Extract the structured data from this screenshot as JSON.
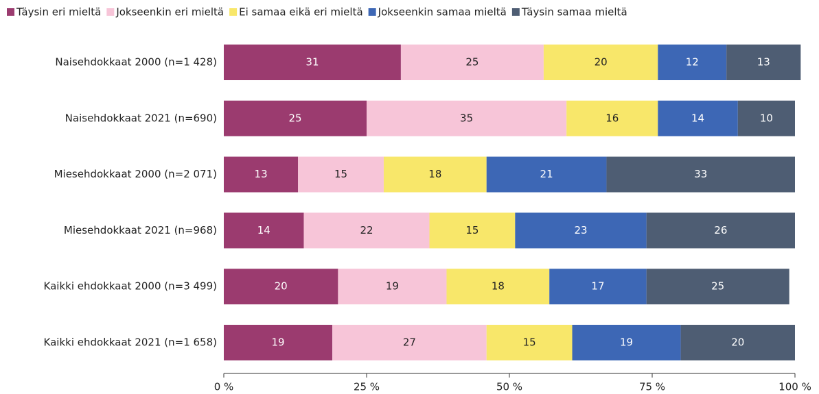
{
  "chart_data": {
    "type": "stacked-bar-horizontal",
    "categories": [
      "Naisehdokkaat 2000 (n=1 428)",
      "Naisehdokkaat 2021 (n=690)",
      "Miesehdokkaat 2000 (n=2 071)",
      "Miesehdokkaat 2021 (n=968)",
      "Kaikki ehdokkaat 2000 (n=3 499)",
      "Kaikki ehdokkaat 2021 (n=1 658)"
    ],
    "series": [
      {
        "name": "Täysin eri mieltä",
        "color": "#9b3b6f",
        "values": [
          31,
          25,
          13,
          14,
          20,
          19
        ]
      },
      {
        "name": "Jokseenkin eri mieltä",
        "color": "#f7c5d8",
        "values": [
          25,
          35,
          15,
          22,
          19,
          27
        ]
      },
      {
        "name": "Ei samaa eikä eri mieltä",
        "color": "#f8e76a",
        "values": [
          20,
          16,
          18,
          15,
          18,
          15
        ]
      },
      {
        "name": "Jokseenkin samaa mieltä",
        "color": "#3d67b5",
        "values": [
          12,
          14,
          21,
          23,
          17,
          19
        ]
      },
      {
        "name": "Täysin samaa mieltä",
        "color": "#4e5d73",
        "values": [
          13,
          10,
          33,
          26,
          25,
          20
        ]
      }
    ],
    "xlim": [
      0,
      100
    ],
    "xticks": [
      {
        "value": 0,
        "label": "0 %"
      },
      {
        "value": 25,
        "label": "25 %"
      },
      {
        "value": 50,
        "label": "50 %"
      },
      {
        "value": 75,
        "label": "75 %"
      },
      {
        "value": 100,
        "label": "100 %"
      }
    ],
    "legend": "top"
  }
}
